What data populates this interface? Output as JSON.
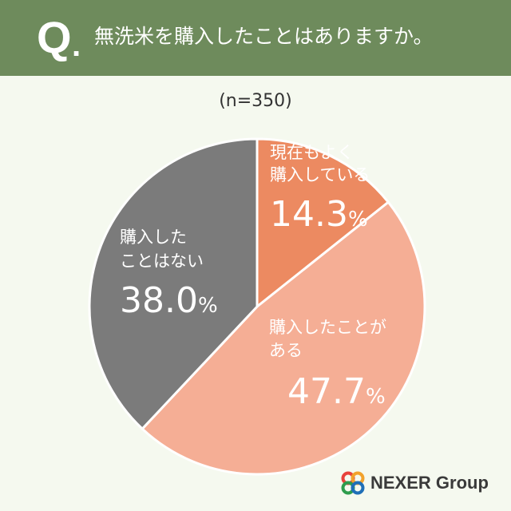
{
  "header": {
    "q_mark": "Q",
    "q_dot": ".",
    "question": "無洗米を購入したことはありますか。"
  },
  "sample_size": "(n=350)",
  "chart_data": {
    "type": "pie",
    "title": "無洗米を購入したことはありますか。",
    "note": "(n=350)",
    "slices": [
      {
        "label": "現在もよく購入している",
        "label_lines": [
          "現在もよく",
          "購入している"
        ],
        "value": 14.3,
        "value_text": "14.3",
        "color": "#ec8a61"
      },
      {
        "label": "購入したことがある",
        "label_lines": [
          "購入したことが",
          "ある"
        ],
        "value": 47.7,
        "value_text": "47.7",
        "color": "#f5ae95"
      },
      {
        "label": "購入したことはない",
        "label_lines": [
          "購入した",
          "ことはない"
        ],
        "value": 38.0,
        "value_text": "38.0",
        "color": "#7b7b7b"
      }
    ],
    "unit": "%",
    "start": "12 o'clock",
    "direction": "clockwise",
    "legend": "none (labels on slices)"
  },
  "logo": {
    "text": "NEXER Group",
    "colors": [
      "#e8423b",
      "#f2a22c",
      "#2e9d4d",
      "#1f6fb7"
    ]
  },
  "colors": {
    "header_bg": "#6e8b5c",
    "page_bg": "#f5f9ef"
  }
}
